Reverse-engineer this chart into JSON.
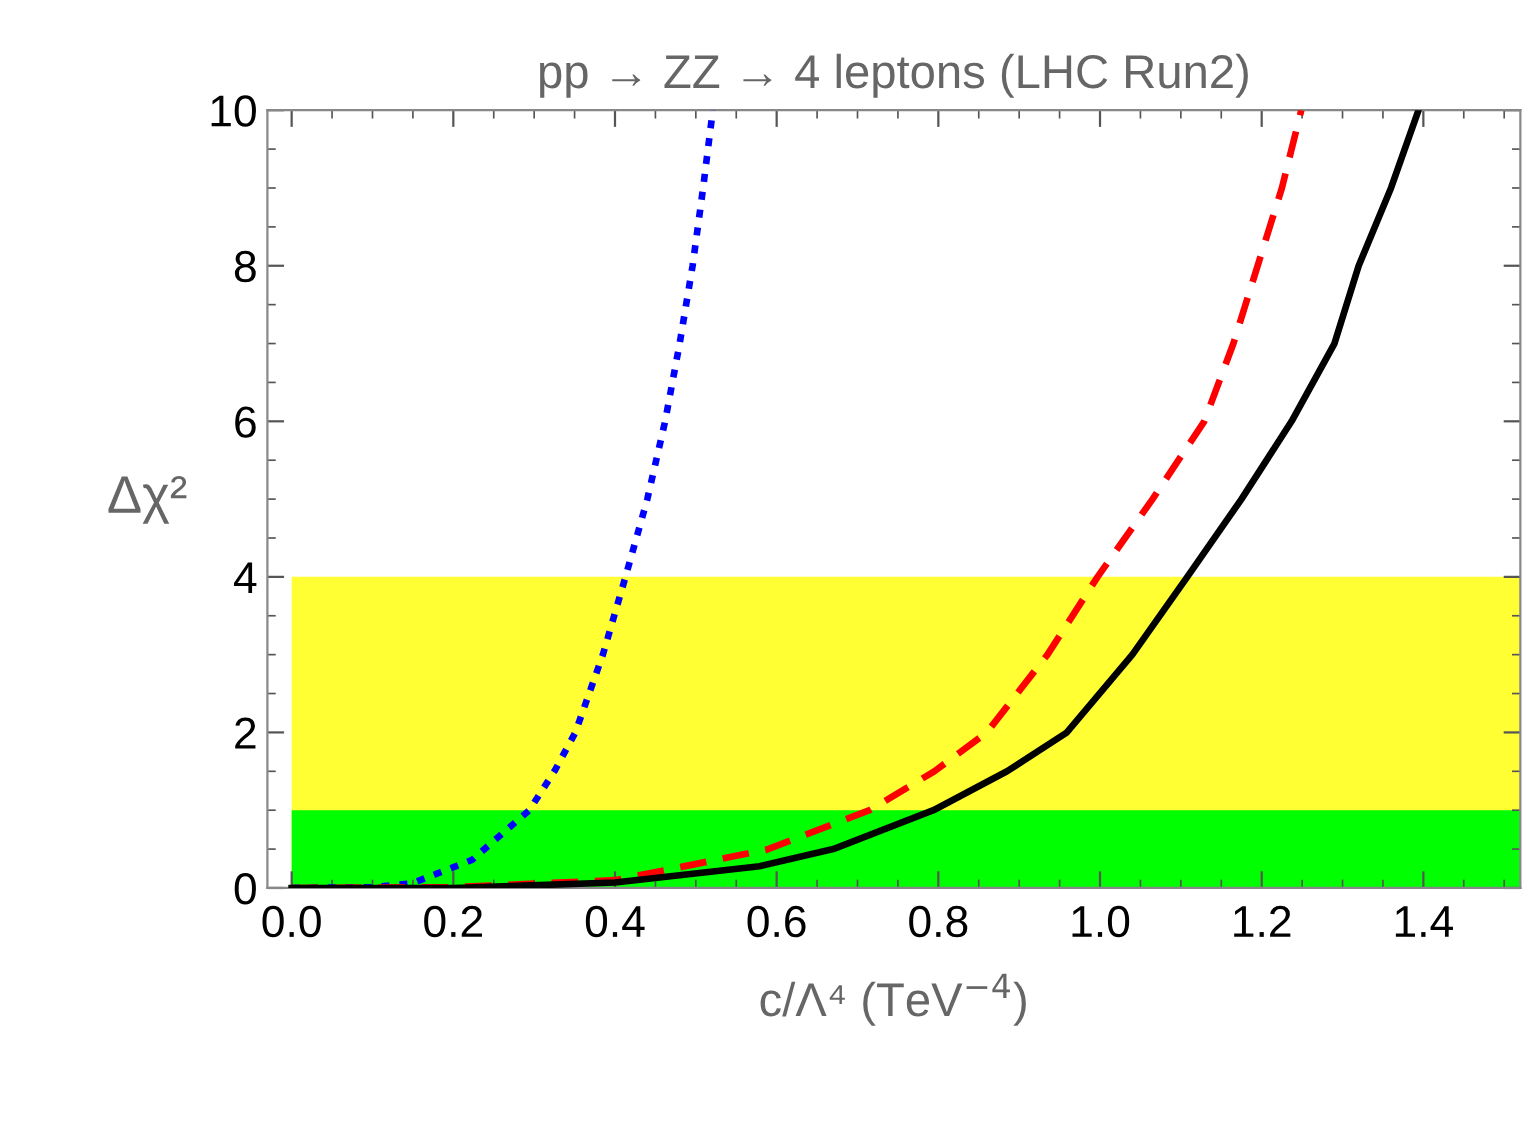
{
  "chart_data": {
    "type": "line",
    "title": "pp → ZZ → 4 leptons (LHC Run2)",
    "xlabel": "c/Λ⁴ (TeV$^{−4}$)",
    "ylabel": "Δχ²",
    "xlim": [
      -0.03,
      1.52
    ],
    "ylim": [
      0,
      10
    ],
    "xticks": [
      {
        "value": 0,
        "label": "0.0"
      },
      {
        "value": 0.2,
        "label": "0.2"
      },
      {
        "value": 0.4,
        "label": "0.4"
      },
      {
        "value": 0.6,
        "label": "0.6"
      },
      {
        "value": 0.8,
        "label": "0.8"
      },
      {
        "value": 1,
        "label": "1.0"
      },
      {
        "value": 1.2,
        "label": "1.2"
      },
      {
        "value": 1.4,
        "label": "1.4"
      }
    ],
    "yticks": [
      0,
      2,
      4,
      6,
      8,
      10
    ],
    "grid": false,
    "bands": [
      {
        "axis": "y",
        "from": 0,
        "to": 4,
        "color": "#ffff33"
      },
      {
        "axis": "y",
        "from": 0,
        "to": 1,
        "color": "#00ff00"
      }
    ],
    "series": [
      {
        "color": "#0000ff",
        "line_style": "dotted",
        "x": [
          0,
          0.1,
          0.149,
          0.223,
          0.294,
          0.325,
          0.351,
          0.385,
          0.413,
          0.44,
          0.462,
          0.48,
          0.496,
          0.509,
          0.521
        ],
        "values": [
          0,
          0.01,
          0.06,
          0.36,
          1,
          1.5,
          2,
          3,
          4,
          5,
          6,
          7,
          8,
          9,
          10
        ]
      },
      {
        "color": "#ff0000",
        "line_style": "dashed",
        "x": [
          0,
          0.2,
          0.4,
          0.587,
          0.715,
          0.795,
          0.86,
          0.935,
          0.997,
          1.065,
          1.129,
          1.165,
          1.195,
          1.225,
          1.249
        ],
        "values": [
          0,
          0.01,
          0.1,
          0.49,
          1,
          1.5,
          2,
          3,
          4,
          5,
          6,
          7,
          8,
          9,
          10
        ]
      },
      {
        "color": "#000000",
        "line_style": "solid",
        "x": [
          0,
          0.2,
          0.4,
          0.579,
          0.67,
          0.794,
          0.885,
          0.959,
          1.04,
          1.108,
          1.175,
          1.237,
          1.29,
          1.32,
          1.36,
          1.394
        ],
        "values": [
          0,
          0,
          0.07,
          0.28,
          0.5,
          1,
          1.5,
          2,
          3,
          4,
          5,
          6,
          7,
          8,
          9,
          10
        ]
      }
    ]
  }
}
